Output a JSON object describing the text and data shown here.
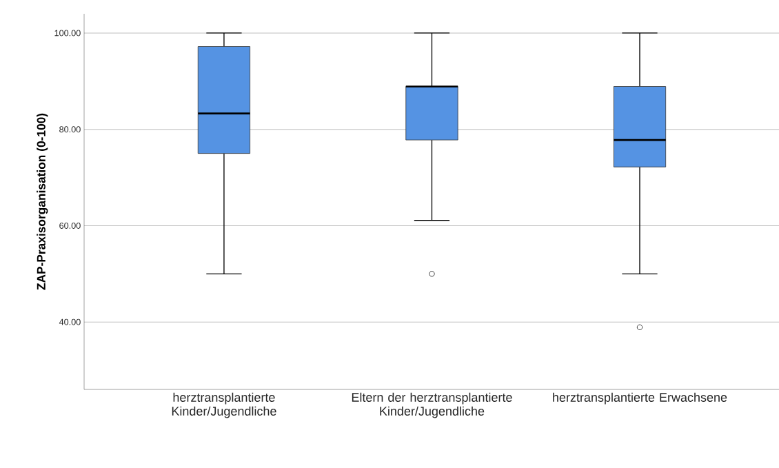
{
  "chart_data": {
    "type": "box",
    "ylabel": "ZAP-Praxisorganisation (0-100)",
    "categories": [
      "herztransplantierte Kinder/Jugendliche",
      "Eltern der herztransplantierte Kinder/Jugendliche",
      "herztransplantierte Erwachsene"
    ],
    "boxes": [
      {
        "low": 50,
        "q1": 75,
        "median": 83.3,
        "q3": 97.2,
        "high": 100
      },
      {
        "low": 61.1,
        "q1": 77.8,
        "median": 88.9,
        "q3": 88.9,
        "high": 100,
        "outliers": [
          50
        ]
      },
      {
        "low": 50,
        "q1": 72.2,
        "median": 77.8,
        "q3": 88.9,
        "high": 100,
        "outliers": [
          38.9
        ]
      }
    ],
    "color": "#5593e3",
    "ylim": [
      26,
      104
    ],
    "yticks": [
      {
        "value": 40,
        "label": "40.00"
      },
      {
        "value": 60,
        "label": "60.00"
      },
      {
        "value": 80,
        "label": "80.00"
      },
      {
        "value": 100,
        "label": "100.00"
      }
    ],
    "grid": "y"
  }
}
